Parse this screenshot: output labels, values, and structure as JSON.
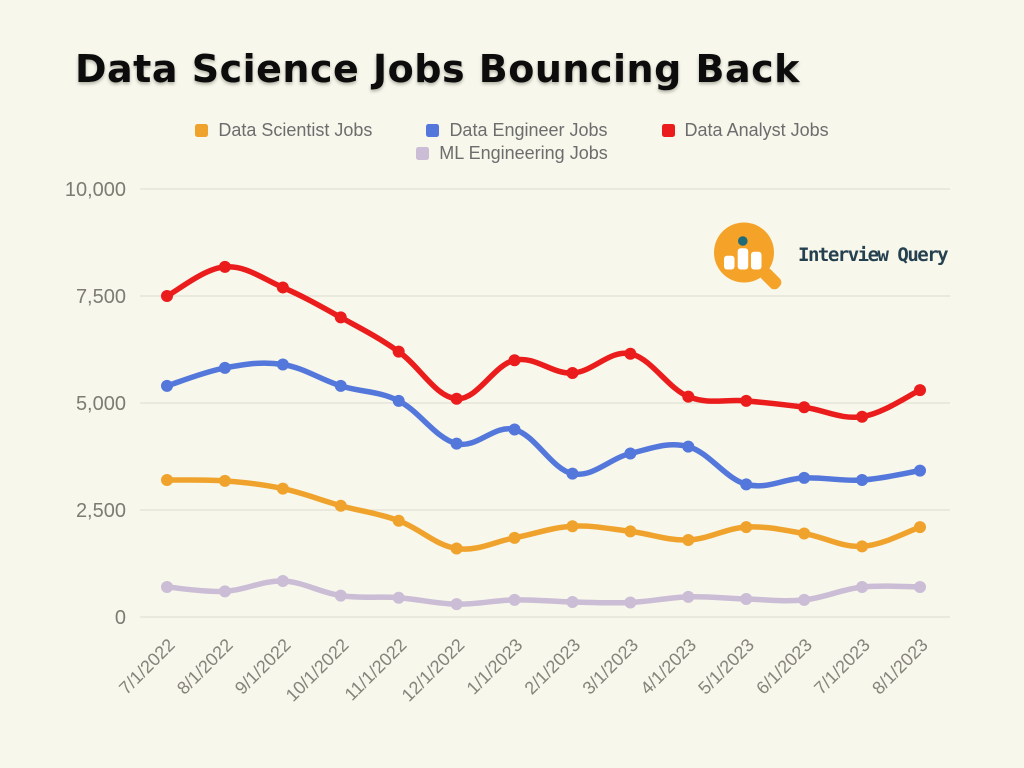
{
  "chart_data": {
    "type": "line",
    "title": "Data Science Jobs Bouncing Back",
    "x": [
      "7/1/2022",
      "8/1/2022",
      "9/1/2022",
      "10/1/2022",
      "11/1/2022",
      "12/1/2022",
      "1/1/2023",
      "2/1/2023",
      "3/1/2023",
      "4/1/2023",
      "5/1/2023",
      "6/1/2023",
      "7/1/2023",
      "8/1/2023"
    ],
    "series": [
      {
        "name": "Data Scientist Jobs",
        "color": "#f0a32c",
        "values": [
          3200,
          3180,
          3000,
          2600,
          2250,
          1600,
          1850,
          2120,
          2000,
          1800,
          2100,
          1950,
          1650,
          2100
        ]
      },
      {
        "name": "Data Engineer Jobs",
        "color": "#5377da",
        "values": [
          5400,
          5820,
          5900,
          5400,
          5050,
          4050,
          4380,
          3350,
          3820,
          3980,
          3100,
          3250,
          3200,
          3420
        ]
      },
      {
        "name": "Data Analyst Jobs",
        "color": "#eb1c1c",
        "values": [
          7500,
          8180,
          7700,
          7000,
          6200,
          5100,
          6000,
          5700,
          6150,
          5150,
          5050,
          4900,
          4680,
          5300
        ]
      },
      {
        "name": "ML Engineering Jobs",
        "color": "#cabdd5",
        "values": [
          700,
          600,
          840,
          500,
          450,
          300,
          400,
          350,
          340,
          470,
          420,
          400,
          700,
          700
        ]
      }
    ],
    "ylim": [
      0,
      10000
    ],
    "yticks": [
      0,
      2500,
      5000,
      7500,
      10000
    ],
    "ytick_labels": [
      "0",
      "2,500",
      "5,000",
      "7,500",
      "10,000"
    ],
    "grid": "horizontal",
    "legend_position": "top (row one: first three series; row two: fourth series)",
    "x_tick_rotation": -45
  },
  "branding": {
    "logo_text": "Interview Query",
    "logo_icon": "magnifying-glass-bar-chart",
    "logo_orange": "#f5a328",
    "logo_dot_teal": "#1f6b79",
    "logo_text_color": "#25404e"
  },
  "colors": {
    "background": "#f7f7ec",
    "title_text": "#0c0c0c",
    "legend_text": "#6d6d6d",
    "axis_text": "#7d7b72",
    "gridline": "#dcdbd1"
  }
}
